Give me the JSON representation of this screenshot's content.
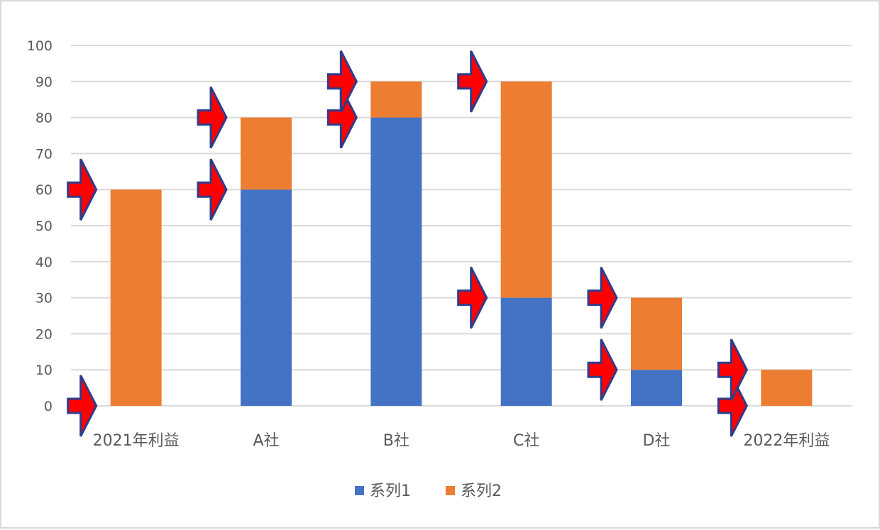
{
  "chart_data": {
    "type": "bar",
    "stacked": true,
    "categories": [
      "2021年利益",
      "A社",
      "B社",
      "C社",
      "D社",
      "2022年利益"
    ],
    "series": [
      {
        "name": "系列1",
        "values": [
          0,
          60,
          80,
          30,
          10,
          0
        ],
        "color": "#4472c4"
      },
      {
        "name": "系列2",
        "values": [
          60,
          20,
          10,
          60,
          20,
          10
        ],
        "color": "#ed7d31"
      }
    ],
    "ylim": [
      0,
      100
    ],
    "yticks": [
      0,
      10,
      20,
      30,
      40,
      50,
      60,
      70,
      80,
      90,
      100
    ],
    "grid": true,
    "legend": "bottom",
    "annotations": {
      "icon": "red-arrow-icon",
      "color": "#ff0000",
      "outline": "#2f3c8c",
      "markers": [
        {
          "category": "2021年利益",
          "value": 0
        },
        {
          "category": "2021年利益",
          "value": 60
        },
        {
          "category": "A社",
          "value": 60
        },
        {
          "category": "A社",
          "value": 80
        },
        {
          "category": "B社",
          "value": 80
        },
        {
          "category": "B社",
          "value": 90
        },
        {
          "category": "C社",
          "value": 30
        },
        {
          "category": "C社",
          "value": 90
        },
        {
          "category": "D社",
          "value": 10
        },
        {
          "category": "D社",
          "value": 30
        },
        {
          "category": "2022年利益",
          "value": 0
        },
        {
          "category": "2022年利益",
          "value": 10
        }
      ]
    }
  }
}
